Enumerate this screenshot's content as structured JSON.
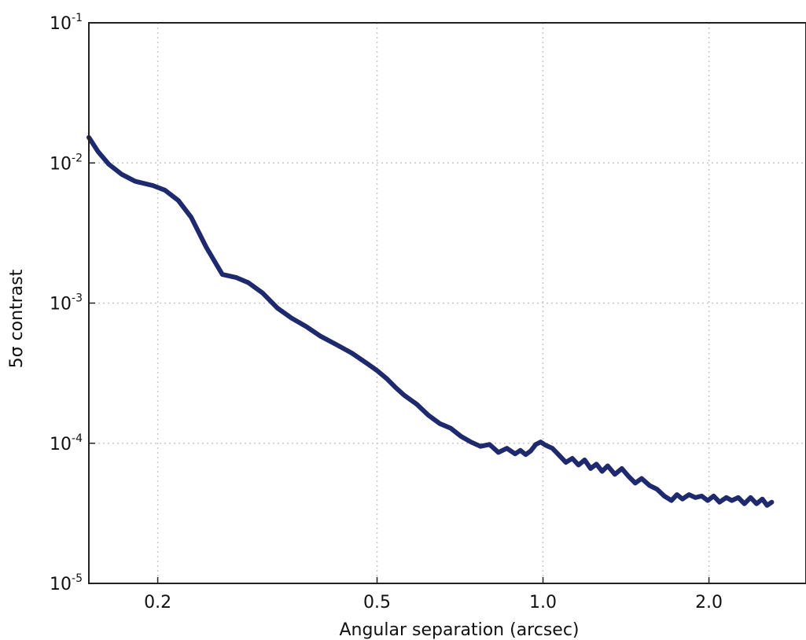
{
  "chart_data": {
    "type": "line",
    "title": "",
    "xlabel": "Angular separation (arcsec)",
    "ylabel": "5σ contrast",
    "x_scale": "log",
    "y_scale": "log",
    "xlim": [
      0.15,
      3.0
    ],
    "ylim": [
      1e-05,
      0.1
    ],
    "grid": true,
    "x_ticks": [
      {
        "value": 0.2,
        "label": "0.2"
      },
      {
        "value": 0.5,
        "label": "0.5"
      },
      {
        "value": 1.0,
        "label": "1.0"
      },
      {
        "value": 2.0,
        "label": "2.0"
      }
    ],
    "y_ticks": [
      {
        "value": 1e-05,
        "base": "10",
        "exp": "-5"
      },
      {
        "value": 0.0001,
        "base": "10",
        "exp": "-4"
      },
      {
        "value": 0.001,
        "base": "10",
        "exp": "-3"
      },
      {
        "value": 0.01,
        "base": "10",
        "exp": "-2"
      },
      {
        "value": 0.1,
        "base": "10",
        "exp": "-1"
      }
    ],
    "series": [
      {
        "color": "#1f2a6e",
        "x": [
          0.15,
          0.156,
          0.163,
          0.172,
          0.182,
          0.196,
          0.206,
          0.218,
          0.23,
          0.245,
          0.262,
          0.278,
          0.292,
          0.31,
          0.33,
          0.35,
          0.372,
          0.395,
          0.42,
          0.45,
          0.48,
          0.5,
          0.52,
          0.54,
          0.56,
          0.59,
          0.62,
          0.65,
          0.68,
          0.71,
          0.74,
          0.77,
          0.8,
          0.83,
          0.86,
          0.89,
          0.91,
          0.93,
          0.95,
          0.97,
          0.99,
          1.01,
          1.04,
          1.07,
          1.1,
          1.13,
          1.16,
          1.19,
          1.22,
          1.25,
          1.28,
          1.31,
          1.35,
          1.39,
          1.43,
          1.47,
          1.51,
          1.56,
          1.61,
          1.66,
          1.71,
          1.75,
          1.79,
          1.84,
          1.89,
          1.94,
          1.99,
          2.04,
          2.09,
          2.15,
          2.2,
          2.26,
          2.32,
          2.38,
          2.44,
          2.5,
          2.55,
          2.6
        ],
        "y": [
          0.0152,
          0.012,
          0.0098,
          0.0083,
          0.0074,
          0.0069,
          0.0064,
          0.0054,
          0.0041,
          0.0025,
          0.0016,
          0.00152,
          0.0014,
          0.00118,
          0.00092,
          0.00078,
          0.00068,
          0.00058,
          0.00051,
          0.00044,
          0.00037,
          0.00033,
          0.00029,
          0.00025,
          0.00022,
          0.00019,
          0.000158,
          0.000138,
          0.000128,
          0.000112,
          0.000102,
          9.5e-05,
          9.8e-05,
          8.6e-05,
          9.2e-05,
          8.4e-05,
          8.9e-05,
          8.3e-05,
          8.8e-05,
          9.8e-05,
          0.000102,
          9.7e-05,
          9.2e-05,
          8.2e-05,
          7.3e-05,
          7.8e-05,
          7e-05,
          7.6e-05,
          6.6e-05,
          7.1e-05,
          6.3e-05,
          6.9e-05,
          6e-05,
          6.6e-05,
          5.8e-05,
          5.2e-05,
          5.6e-05,
          5e-05,
          4.7e-05,
          4.2e-05,
          3.9e-05,
          4.3e-05,
          4e-05,
          4.3e-05,
          4.1e-05,
          4.2e-05,
          3.9e-05,
          4.2e-05,
          3.8e-05,
          4.1e-05,
          3.9e-05,
          4.1e-05,
          3.7e-05,
          4.1e-05,
          3.7e-05,
          4e-05,
          3.6e-05,
          3.8e-05
        ]
      }
    ]
  }
}
